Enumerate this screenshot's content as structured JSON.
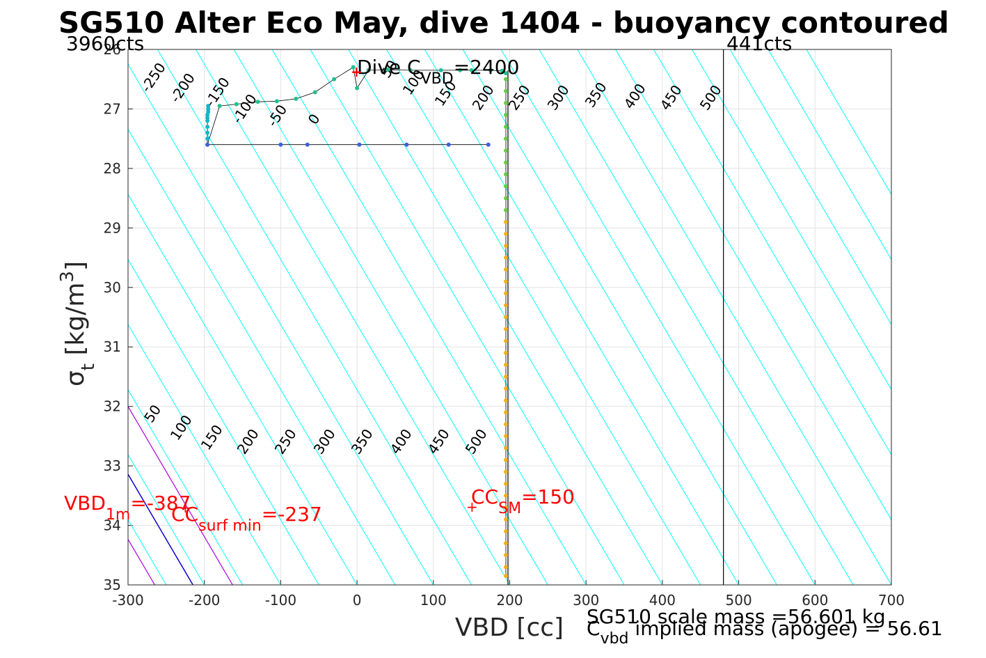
{
  "chart_data": {
    "type": "scatter",
    "title": "SG510 Alter Eco May, dive 1404 - buoyancy contoured",
    "xlabel": "VBD [cc]",
    "ylabel_main": "σ",
    "ylabel_sub": "t",
    "ylabel_units": "[kg/m",
    "ylabel_sup": "3",
    "ylabel_close": "]",
    "xlim": [
      -300,
      700
    ],
    "ylim": [
      26,
      35
    ],
    "y_reversed": true,
    "grid": true,
    "xticks": [
      "-300",
      "-200",
      "-100",
      "0",
      "100",
      "200",
      "300",
      "400",
      "500",
      "600",
      "700"
    ],
    "yticks": [
      "26",
      "27",
      "28",
      "29",
      "30",
      "31",
      "32",
      "33",
      "34",
      "35"
    ],
    "counts_left": "3960cts",
    "counts_right": "441cts",
    "counts_right_x": 480,
    "vbd_lo_x": 195,
    "contour_labels_upper": [
      "-250",
      "-200",
      "-150",
      "-100",
      "-50",
      "0",
      "50",
      "100",
      "150",
      "200",
      "250",
      "300",
      "350",
      "400",
      "450",
      "500"
    ],
    "contour_labels_lower": [
      "50",
      "100",
      "150",
      "200",
      "250",
      "300",
      "350",
      "400",
      "450",
      "500"
    ],
    "colors": {
      "contour": "#00FFFF",
      "target_line": "#0000CC",
      "limit_lines": "#AA00DD",
      "annotation": "#FF0000",
      "dive_start": "#14B4C8",
      "dive_mid": "#20C090",
      "dive_bottom": "#F0B020",
      "climb": "#4060E0"
    },
    "annotations": {
      "dive_c_prefix": "Dive C",
      "dive_c_sub": "VBD",
      "dive_c_value": "=2400",
      "vbd_1m_prefix": "VBD",
      "vbd_1m_sub": "1m",
      "vbd_1m_value": "=-387",
      "cc_surf_prefix": "CC",
      "cc_surf_sub": "surf min",
      "cc_surf_value": "=-237",
      "cc_sm_prefix": "CC",
      "cc_sm_sub": "SM",
      "cc_sm_value": "=150",
      "scale_mass": "SG510 scale mass =56.601 kg",
      "implied_prefix": "C",
      "implied_sub": "vbd",
      "implied_value": " implied mass (apogee) = 56.61"
    },
    "series": [
      {
        "points": [
          [
            -195,
            26.95
          ],
          [
            -195,
            27.0
          ],
          [
            -195,
            27.05
          ],
          [
            -196,
            27.1
          ],
          [
            -196,
            27.15
          ],
          [
            -196,
            27.2
          ],
          [
            -196,
            27.3
          ],
          [
            -196,
            27.4
          ],
          [
            -196,
            27.5
          ],
          [
            -196,
            27.6
          ],
          [
            -180,
            26.95
          ],
          [
            -158,
            26.92
          ],
          [
            -130,
            26.88
          ],
          [
            -105,
            26.87
          ],
          [
            -80,
            26.83
          ],
          [
            -55,
            26.72
          ],
          [
            -30,
            26.5
          ],
          [
            -5,
            26.3
          ],
          [
            0,
            26.65
          ],
          [
            15,
            26.35
          ],
          [
            40,
            26.34
          ],
          [
            70,
            26.35
          ],
          [
            110,
            26.35
          ],
          [
            135,
            26.35
          ],
          [
            150,
            26.35
          ],
          [
            175,
            26.35
          ],
          [
            190,
            26.36
          ],
          [
            195,
            26.4
          ]
        ]
      },
      {
        "points": [
          [
            195,
            26.5
          ],
          [
            195,
            26.7
          ],
          [
            195,
            26.9
          ],
          [
            195,
            27.1
          ],
          [
            195,
            27.3
          ],
          [
            195,
            27.5
          ],
          [
            195,
            27.7
          ],
          [
            195,
            27.9
          ],
          [
            195,
            28.1
          ],
          [
            195,
            28.3
          ],
          [
            195,
            28.5
          ],
          [
            195,
            28.7
          ],
          [
            195,
            28.9
          ],
          [
            195,
            29.1
          ],
          [
            195,
            29.3
          ],
          [
            195,
            29.5
          ],
          [
            195,
            29.7
          ],
          [
            195,
            29.9
          ],
          [
            195,
            30.1
          ],
          [
            195,
            30.3
          ],
          [
            195,
            30.5
          ],
          [
            195,
            30.7
          ],
          [
            195,
            30.9
          ],
          [
            195,
            31.1
          ],
          [
            195,
            31.3
          ],
          [
            195,
            31.5
          ],
          [
            195,
            31.7
          ],
          [
            195,
            31.9
          ],
          [
            195,
            32.1
          ],
          [
            195,
            32.3
          ],
          [
            195,
            32.5
          ],
          [
            195,
            32.7
          ],
          [
            195,
            32.9
          ],
          [
            195,
            33.1
          ],
          [
            195,
            33.3
          ],
          [
            195,
            33.5
          ],
          [
            195,
            33.7
          ],
          [
            195,
            33.9
          ],
          [
            195,
            34.1
          ],
          [
            195,
            34.3
          ],
          [
            195,
            34.5
          ],
          [
            195,
            34.7
          ],
          [
            195,
            34.85
          ]
        ]
      },
      {
        "points": [
          [
            -196,
            27.6
          ],
          [
            -100,
            27.6
          ],
          [
            -65,
            27.6
          ],
          [
            3,
            27.6
          ],
          [
            65,
            27.6
          ],
          [
            120,
            27.6
          ],
          [
            172,
            27.6
          ]
        ]
      }
    ]
  }
}
